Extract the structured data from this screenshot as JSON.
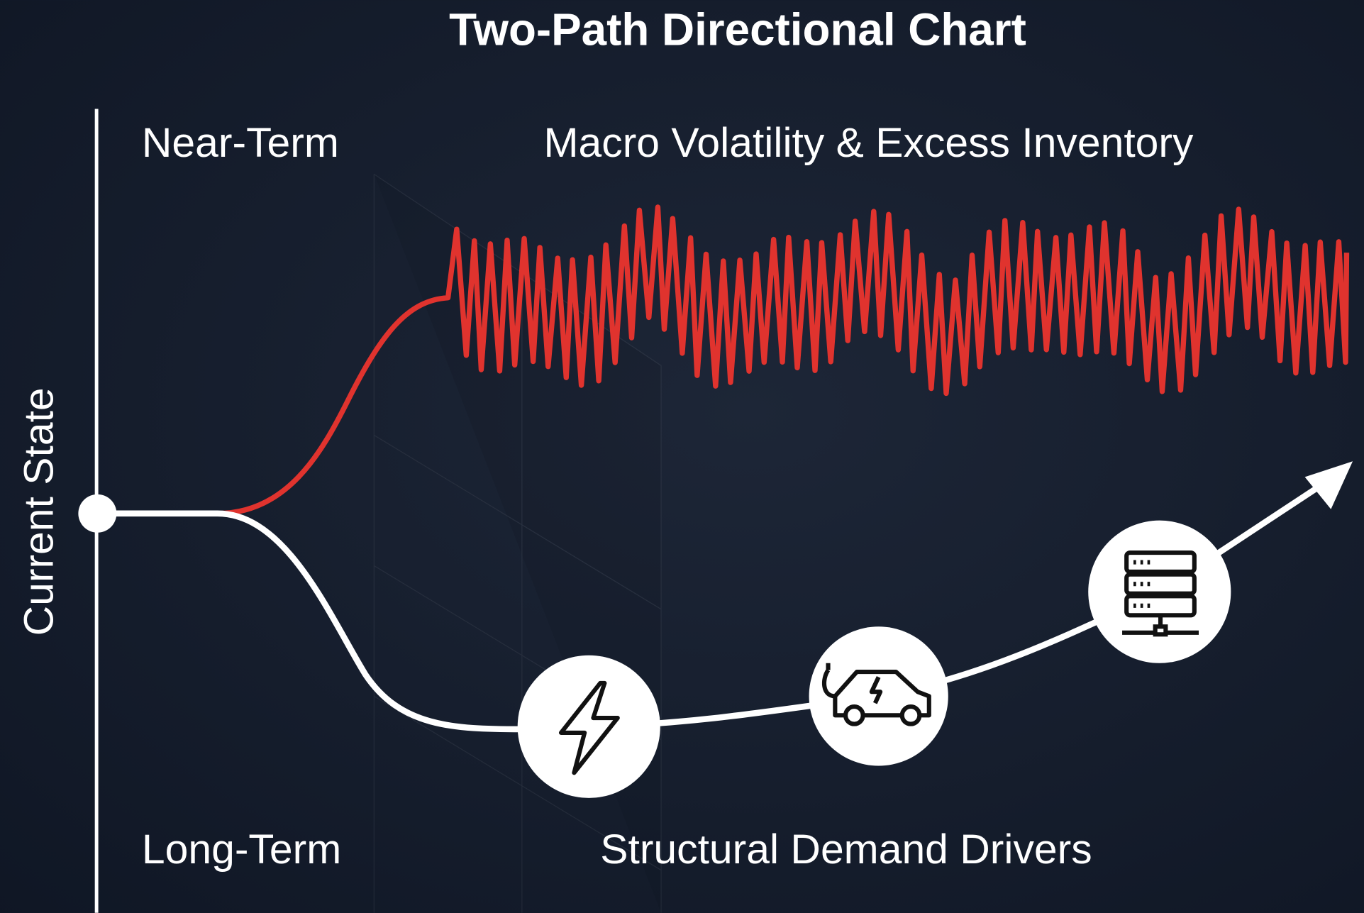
{
  "title": "Two-Path Directional Chart",
  "axis_label": "Current State",
  "near_term": {
    "label": "Near-Term",
    "caption": "Macro Volatility & Excess Inventory"
  },
  "long_term": {
    "label": "Long-Term",
    "caption": "Structural Demand Drivers"
  }
}
